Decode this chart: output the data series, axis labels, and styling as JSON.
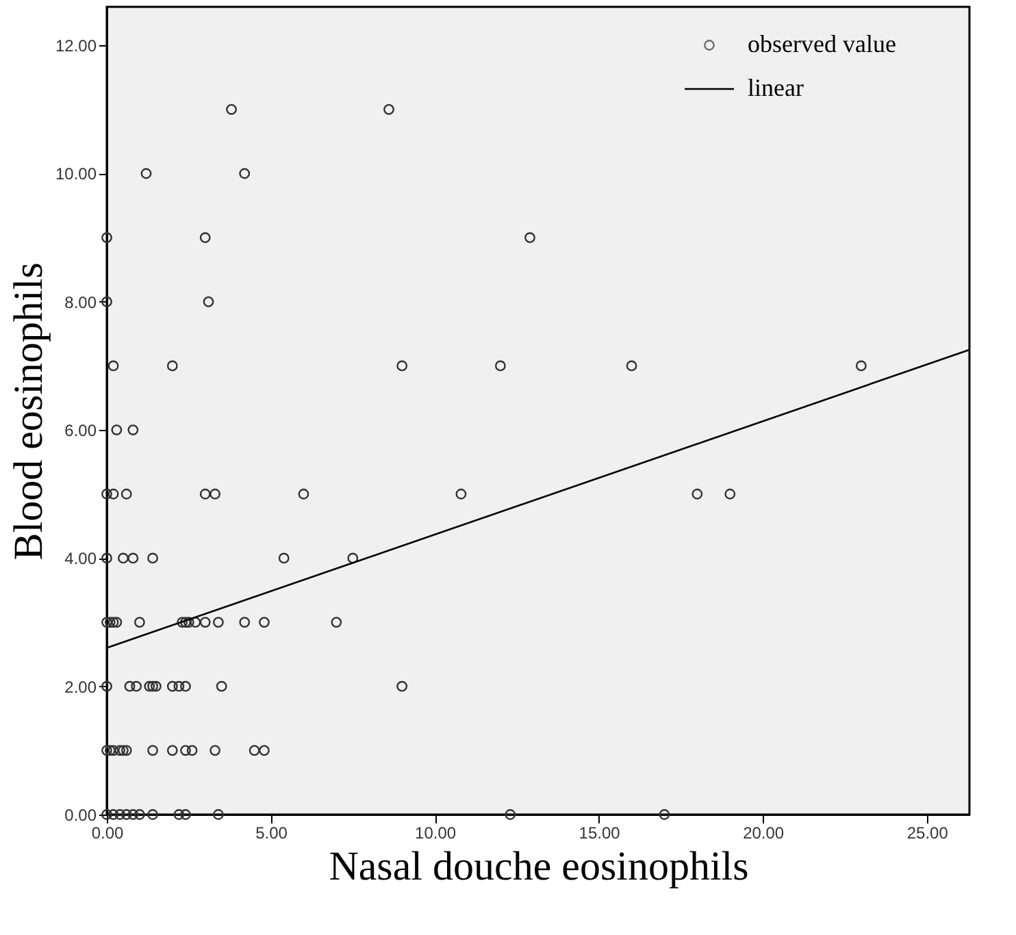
{
  "chart_data": {
    "type": "scatter",
    "xlabel": "Nasal douche eosinophils",
    "ylabel": "Blood eosinophils",
    "xlim": [
      0,
      26.3
    ],
    "ylim": [
      0,
      12.6
    ],
    "xticks": [
      {
        "value": 0,
        "label": "0.00"
      },
      {
        "value": 5,
        "label": "5.00"
      },
      {
        "value": 10,
        "label": "10.00"
      },
      {
        "value": 15,
        "label": "15.00"
      },
      {
        "value": 20,
        "label": "20.00"
      },
      {
        "value": 25,
        "label": "25.00"
      }
    ],
    "yticks": [
      {
        "value": 0,
        "label": "0.00"
      },
      {
        "value": 2,
        "label": "2.00"
      },
      {
        "value": 4,
        "label": "4.00"
      },
      {
        "value": 6,
        "label": "6.00"
      },
      {
        "value": 8,
        "label": "8.00"
      },
      {
        "value": 10,
        "label": "10.00"
      },
      {
        "value": 12,
        "label": "12.00"
      }
    ],
    "grid": false,
    "legend": "top right",
    "series": [
      {
        "name": "observed value",
        "marker": "circle",
        "color": "#333333",
        "x": [
          3.8,
          8.6,
          1.2,
          4.2,
          0,
          3.0,
          12.9,
          0,
          3.1,
          0.2,
          2.0,
          9.0,
          12.0,
          16.0,
          23.0,
          0.3,
          0.8,
          0,
          0.2,
          0.6,
          3.0,
          3.3,
          6.0,
          10.8,
          18.0,
          19.0,
          0,
          0.5,
          0.8,
          1.4,
          5.4,
          7.5,
          0,
          0.1,
          0.2,
          0.3,
          1.0,
          2.3,
          2.4,
          2.5,
          2.7,
          3.0,
          3.4,
          4.2,
          4.8,
          7.0,
          0,
          0.7,
          0.9,
          1.3,
          1.4,
          1.5,
          2.0,
          2.2,
          2.4,
          3.5,
          9.0,
          0,
          0.1,
          0.2,
          0.4,
          0.5,
          0.6,
          1.4,
          2.0,
          2.4,
          2.6,
          3.3,
          4.5,
          4.8,
          0,
          0.2,
          0.4,
          0.6,
          0.8,
          1.0,
          1.4,
          2.2,
          2.4,
          3.4,
          12.3,
          17.0
        ],
        "values": [
          11,
          11,
          10,
          10,
          9,
          9,
          9,
          8,
          8,
          7,
          7,
          7,
          7,
          7,
          7,
          6,
          6,
          5,
          5,
          5,
          5,
          5,
          5,
          5,
          5,
          5,
          4,
          4,
          4,
          4,
          4,
          4,
          3,
          3,
          3,
          3,
          3,
          3,
          3,
          3,
          3,
          3,
          3,
          3,
          3,
          3,
          2,
          2,
          2,
          2,
          2,
          2,
          2,
          2,
          2,
          2,
          2,
          1,
          1,
          1,
          1,
          1,
          1,
          1,
          1,
          1,
          1,
          1,
          1,
          1,
          0,
          0,
          0,
          0,
          0,
          0,
          0,
          0,
          0,
          0,
          0,
          0
        ]
      },
      {
        "name": "linear",
        "type": "line",
        "line_style": "solid",
        "color": "#000000",
        "x": [
          0,
          26.3
        ],
        "values": [
          2.6,
          7.25
        ]
      }
    ]
  }
}
